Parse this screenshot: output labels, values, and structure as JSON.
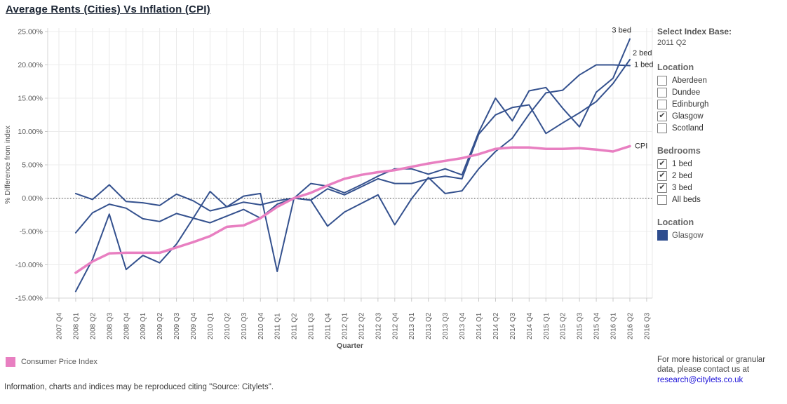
{
  "title": "Average Rents (Cities) Vs Inflation (CPI)",
  "sidebar": {
    "index_base": {
      "label": "Select Index Base:",
      "value": "2011 Q2"
    },
    "location_filter": {
      "label": "Location",
      "options": [
        {
          "label": "Aberdeen",
          "checked": false
        },
        {
          "label": "Dundee",
          "checked": false
        },
        {
          "label": "Edinburgh",
          "checked": false
        },
        {
          "label": "Glasgow",
          "checked": true
        },
        {
          "label": "Scotland",
          "checked": false
        }
      ]
    },
    "bedrooms_filter": {
      "label": "Bedrooms",
      "options": [
        {
          "label": "1 bed",
          "checked": true
        },
        {
          "label": "2 bed",
          "checked": true
        },
        {
          "label": "3 bed",
          "checked": true
        },
        {
          "label": "All beds",
          "checked": false
        }
      ]
    },
    "location_legend": {
      "label": "Location",
      "items": [
        {
          "label": "Glasgow",
          "color": "#2e4d8e"
        }
      ]
    },
    "contact": {
      "text": "For more historical or granular data, please contact us at",
      "email": "research@citylets.co.uk"
    }
  },
  "legend": {
    "cpi_label": "Consumer Price Index",
    "cpi_color": "#e87fc1"
  },
  "footer": "Information, charts and indices may be reproduced citing \"Source: Citylets\".",
  "chart_data": {
    "type": "line",
    "title": "Average Rents (Cities) Vs Inflation (CPI)",
    "xlabel": "Quarter",
    "ylabel": "% Difference from index",
    "ylim": [
      -15,
      25
    ],
    "ytick_step": 5,
    "ytick_format": "percent_2dp",
    "grid": true,
    "zero_line_dotted": true,
    "index_base": "2011 Q2",
    "legend_position": "bottom-left",
    "categories": [
      "2007 Q4",
      "2008 Q1",
      "2008 Q2",
      "2008 Q3",
      "2008 Q4",
      "2009 Q1",
      "2009 Q2",
      "2009 Q3",
      "2009 Q4",
      "2010 Q1",
      "2010 Q2",
      "2010 Q3",
      "2010 Q4",
      "2011 Q1",
      "2011 Q2",
      "2011 Q3",
      "2011 Q4",
      "2012 Q1",
      "2012 Q2",
      "2012 Q3",
      "2012 Q4",
      "2013 Q1",
      "2013 Q2",
      "2013 Q3",
      "2013 Q4",
      "2014 Q1",
      "2014 Q2",
      "2014 Q3",
      "2014 Q4",
      "2015 Q1",
      "2015 Q2",
      "2015 Q3",
      "2015 Q4",
      "2016 Q1",
      "2016 Q2",
      "2016 Q3"
    ],
    "series": [
      {
        "name": "1 bed",
        "color": "#34518e",
        "width": 2,
        "values": [
          null,
          0.7,
          -0.2,
          2.0,
          -0.5,
          -0.7,
          -1.1,
          0.6,
          -0.4,
          -1.9,
          -1.3,
          -0.6,
          -1.0,
          -0.4,
          0.0,
          -0.3,
          -4.2,
          -2.1,
          -0.8,
          0.5,
          -4.0,
          -0.1,
          3.1,
          0.7,
          1.1,
          4.4,
          7.0,
          9.0,
          12.6,
          15.8,
          16.2,
          18.5,
          20.0,
          20.0,
          19.9,
          null
        ]
      },
      {
        "name": "2 bed",
        "color": "#34518e",
        "width": 2,
        "values": [
          null,
          -5.2,
          -2.2,
          -0.9,
          -1.5,
          -3.1,
          -3.5,
          -2.3,
          -3.0,
          -3.7,
          -2.7,
          -1.7,
          -3.0,
          -0.9,
          0.0,
          -0.3,
          1.4,
          0.5,
          1.7,
          2.9,
          2.2,
          2.2,
          2.9,
          3.3,
          2.9,
          9.6,
          12.5,
          13.6,
          14.0,
          9.7,
          11.3,
          12.8,
          14.5,
          17.2,
          20.8,
          null
        ]
      },
      {
        "name": "3 bed",
        "color": "#34518e",
        "width": 2,
        "values": [
          null,
          -14.0,
          -9.2,
          -2.4,
          -10.7,
          -8.6,
          -9.7,
          -6.9,
          -3.0,
          1.0,
          -1.3,
          0.3,
          0.7,
          -11.0,
          0.0,
          2.2,
          1.8,
          0.8,
          2.0,
          3.3,
          4.4,
          4.4,
          3.6,
          4.4,
          3.5,
          9.9,
          15.0,
          11.6,
          16.1,
          16.6,
          13.5,
          10.7,
          15.9,
          18.0,
          23.9,
          null
        ]
      },
      {
        "name": "CPI",
        "legend_label": "Consumer Price Index",
        "color": "#e87fc1",
        "width": 3.5,
        "values": [
          null,
          -11.2,
          -9.5,
          -8.3,
          -8.2,
          -8.2,
          -8.2,
          -7.4,
          -6.6,
          -5.7,
          -4.3,
          -4.1,
          -3.0,
          -1.3,
          0.0,
          0.8,
          1.9,
          2.9,
          3.5,
          3.9,
          4.2,
          4.7,
          5.2,
          5.6,
          6.0,
          6.6,
          7.4,
          7.6,
          7.6,
          7.4,
          7.4,
          7.5,
          7.3,
          7.0,
          7.8,
          null
        ]
      }
    ]
  }
}
